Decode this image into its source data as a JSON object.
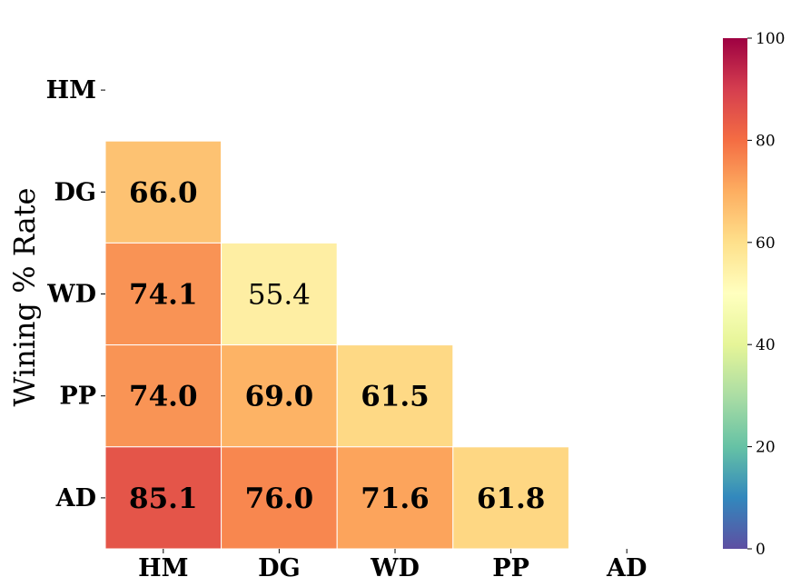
{
  "chart_data": {
    "type": "heatmap",
    "title": "",
    "xlabel": "",
    "ylabel": "Wining % Rate",
    "x_categories": [
      "HM",
      "DG",
      "WD",
      "PP",
      "AD"
    ],
    "y_categories": [
      "HM",
      "DG",
      "WD",
      "PP",
      "AD"
    ],
    "mask": "upper-triangle-and-diagonal",
    "cells": [
      {
        "row": "DG",
        "col": "HM",
        "value": 66.0,
        "label": "66.0",
        "bold": true
      },
      {
        "row": "WD",
        "col": "HM",
        "value": 74.1,
        "label": "74.1",
        "bold": true
      },
      {
        "row": "WD",
        "col": "DG",
        "value": 55.4,
        "label": "55.4",
        "bold": false
      },
      {
        "row": "PP",
        "col": "HM",
        "value": 74.0,
        "label": "74.0",
        "bold": true
      },
      {
        "row": "PP",
        "col": "DG",
        "value": 69.0,
        "label": "69.0",
        "bold": true
      },
      {
        "row": "PP",
        "col": "WD",
        "value": 61.5,
        "label": "61.5",
        "bold": true
      },
      {
        "row": "AD",
        "col": "HM",
        "value": 85.1,
        "label": "85.1",
        "bold": true
      },
      {
        "row": "AD",
        "col": "DG",
        "value": 76.0,
        "label": "76.0",
        "bold": true
      },
      {
        "row": "AD",
        "col": "WD",
        "value": 71.6,
        "label": "71.6",
        "bold": true
      },
      {
        "row": "AD",
        "col": "PP",
        "value": 61.8,
        "label": "61.8",
        "bold": true
      }
    ],
    "colorbar": {
      "colormap": "Spectral_r",
      "range": [
        0,
        100
      ],
      "ticks": [
        "0",
        "20",
        "40",
        "60",
        "80",
        "100"
      ],
      "position": "right"
    },
    "grid": false
  }
}
